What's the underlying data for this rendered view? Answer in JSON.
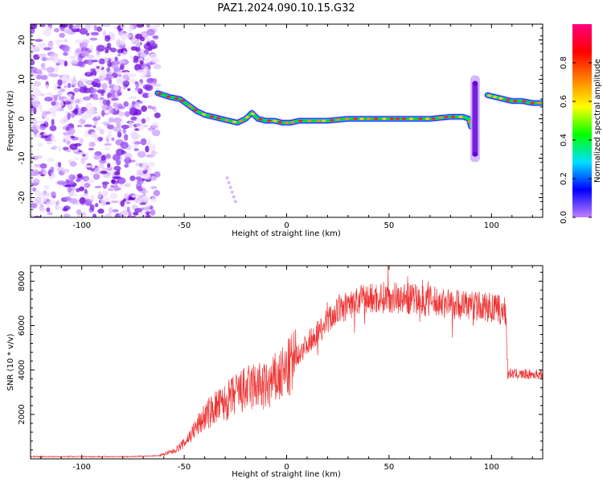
{
  "figure": {
    "title": "PAZ1.2024.090.10.15.G32"
  },
  "chart_data": [
    {
      "type": "heatmap",
      "xlabel": "Height of straight line (km)",
      "ylabel": "Frequency (Hz)",
      "xlim": [
        -125,
        125
      ],
      "ylim": [
        -25,
        24
      ],
      "xticks": [
        -100,
        -50,
        0,
        50,
        100
      ],
      "yticks": [
        -20,
        -10,
        0,
        10,
        20
      ],
      "colorbar": {
        "label": "Normalized spectral amplitude",
        "range": [
          0,
          1
        ],
        "ticks": [
          "0.0",
          "0.2",
          "0.4",
          "0.6",
          "0.8"
        ],
        "colors": [
          "#c080ff",
          "#0000ff",
          "#00e0ff",
          "#00ff00",
          "#ffff00",
          "#ff8000",
          "#ff0000",
          "#ff0080"
        ]
      },
      "noise_region_x": [
        -125,
        -63
      ],
      "ridge": {
        "x": [
          -63,
          -57,
          -52,
          -48,
          -44,
          -40,
          -36,
          -32,
          -28,
          -24,
          -20,
          -17,
          -14,
          -10,
          -6,
          -2,
          2,
          6,
          10,
          20,
          30,
          40,
          50,
          60,
          70,
          80,
          86,
          89,
          90
        ],
        "freq": [
          6.5,
          5.5,
          5,
          3.5,
          2,
          1,
          0.5,
          0,
          -0.5,
          -1,
          0,
          1.5,
          0,
          -0.5,
          -0.5,
          -1,
          -1,
          -0.5,
          -0.5,
          -0.5,
          0,
          0,
          0,
          0,
          0,
          0.5,
          0.5,
          0,
          -2
        ]
      },
      "ridge_segment_2": {
        "x": [
          98,
          102,
          106,
          110,
          115,
          120,
          125
        ],
        "freq": [
          6,
          5.5,
          5,
          4.5,
          4.5,
          4,
          4
        ]
      },
      "vertical_streak": {
        "x": 92,
        "freq_range": [
          -11,
          11
        ]
      }
    },
    {
      "type": "line",
      "xlabel": "Height of straight line (km)",
      "ylabel": "SNR (10 * v/v)",
      "xlim": [
        -125,
        125
      ],
      "ylim": [
        0,
        8700
      ],
      "xticks": [
        -100,
        -50,
        0,
        50,
        100
      ],
      "yticks": [
        2000,
        4000,
        6000,
        8000
      ],
      "color": "#ee3333",
      "envelope": {
        "x": [
          -125,
          -100,
          -75,
          -62,
          -55,
          -50,
          -45,
          -40,
          -35,
          -30,
          -25,
          -20,
          -15,
          -10,
          -5,
          0,
          5,
          10,
          15,
          20,
          25,
          30,
          35,
          40,
          50,
          60,
          70,
          80,
          90,
          100,
          107,
          108,
          115,
          125
        ],
        "snr": [
          100,
          100,
          100,
          150,
          350,
          700,
          1300,
          1900,
          2300,
          2500,
          2900,
          3100,
          3300,
          3200,
          3600,
          3900,
          4600,
          5200,
          5700,
          6200,
          6700,
          6900,
          7100,
          7200,
          7300,
          7200,
          7100,
          7000,
          6900,
          6800,
          6600,
          3850,
          3800,
          3800
        ]
      }
    }
  ]
}
